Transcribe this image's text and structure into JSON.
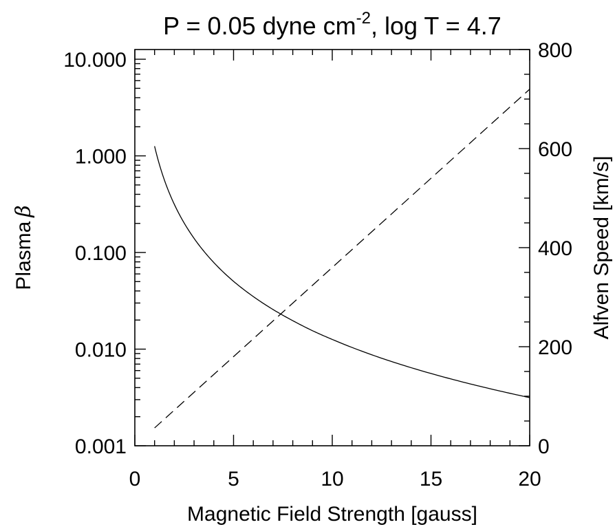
{
  "chart_data": {
    "type": "line",
    "title": "P = 0.05 dyne cm",
    "title_superscript": "-2",
    "title_suffix": ", log T = 4.7",
    "xlabel": "Magnetic Field Strength [gauss]",
    "ylabel_left": "Plasma",
    "ylabel_left_symbol": "β",
    "ylabel_right": "Alfven Speed [km/s]",
    "xlim": [
      0,
      20
    ],
    "ylim_left": [
      0.001,
      12.6
    ],
    "ylim_right": [
      0,
      800
    ],
    "y_left_scale": "log",
    "grid": false,
    "x_ticks": [
      {
        "value": 0,
        "label": "0"
      },
      {
        "value": 5,
        "label": "5"
      },
      {
        "value": 10,
        "label": "10"
      },
      {
        "value": 15,
        "label": "15"
      },
      {
        "value": 20,
        "label": "20"
      }
    ],
    "y_left_ticks": [
      {
        "value": 0.001,
        "label": "0.001"
      },
      {
        "value": 0.01,
        "label": "0.010"
      },
      {
        "value": 0.1,
        "label": "0.100"
      },
      {
        "value": 1,
        "label": "1.000"
      },
      {
        "value": 10,
        "label": "10.000"
      }
    ],
    "y_right_ticks": [
      {
        "value": 0,
        "label": "0"
      },
      {
        "value": 200,
        "label": "200"
      },
      {
        "value": 400,
        "label": "400"
      },
      {
        "value": 600,
        "label": "600"
      },
      {
        "value": 800,
        "label": "800"
      }
    ],
    "series": [
      {
        "axis": "left",
        "line_style": "solid",
        "color": "#000000",
        "x": [
          1,
          1.5,
          2,
          3,
          4,
          5,
          6,
          7,
          8,
          9,
          10,
          12,
          14,
          16,
          18,
          20
        ],
        "y": [
          1.26,
          0.56,
          0.315,
          0.14,
          0.0787,
          0.0503,
          0.035,
          0.0257,
          0.0197,
          0.0155,
          0.0126,
          0.00874,
          0.00642,
          0.00492,
          0.00389,
          0.00315
        ]
      },
      {
        "axis": "right",
        "line_style": "dashed",
        "color": "#000000",
        "x": [
          1,
          20
        ],
        "y": [
          36,
          720
        ]
      }
    ]
  }
}
